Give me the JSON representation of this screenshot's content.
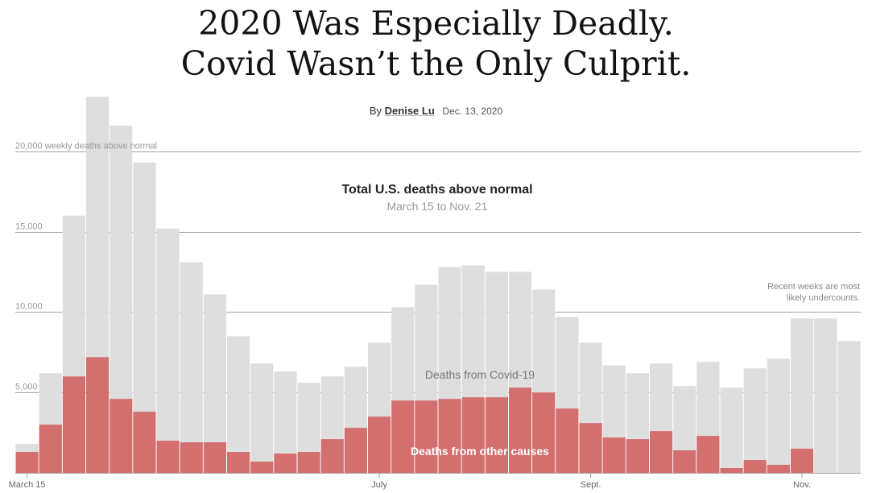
{
  "headline": {
    "line1": "2020 Was Especially Deadly.",
    "line2": "Covid Wasn’t the Only Culprit."
  },
  "byline": {
    "prefix": "By",
    "author": "Denise Lu",
    "date": "Dec. 13, 2020"
  },
  "chart_data": {
    "type": "bar",
    "title": "Total U.S. deaths above normal",
    "subtitle": "March 15 to Nov. 21",
    "xlabel": "",
    "ylabel": "",
    "ylim": [
      0,
      23500
    ],
    "grid": true,
    "y_ticks": [
      {
        "value": 5000,
        "label": "5,000"
      },
      {
        "value": 10000,
        "label": "10,000"
      },
      {
        "value": 15000,
        "label": "15,000"
      },
      {
        "value": 20000,
        "label": "20,000 weekly deaths above normal"
      }
    ],
    "x_ticks": [
      {
        "index": 0,
        "label": "March 15"
      },
      {
        "index": 15,
        "label": "July"
      },
      {
        "index": 24,
        "label": "Sept."
      },
      {
        "index": 33,
        "label": "Nov."
      }
    ],
    "total_values": [
      1800,
      6200,
      16000,
      23400,
      21600,
      19300,
      15200,
      13100,
      11100,
      8500,
      6800,
      6300,
      5600,
      6000,
      6600,
      8100,
      10300,
      11700,
      12800,
      12900,
      12500,
      12500,
      11400,
      9700,
      8100,
      6700,
      6200,
      6800,
      5400,
      6900,
      5300,
      6500,
      7100,
      9600,
      9600,
      8200
    ],
    "series": [
      {
        "name": "Deaths from other causes",
        "values": [
          1300,
          3000,
          6000,
          7200,
          4600,
          3800,
          2000,
          1900,
          1900,
          1300,
          700,
          1200,
          1300,
          2100,
          2800,
          3500,
          4500,
          4500,
          4600,
          4700,
          4700,
          5300,
          5000,
          4000,
          3100,
          2200,
          2100,
          2600,
          1400,
          2300,
          300,
          800,
          500,
          1500,
          0,
          0
        ]
      },
      {
        "name": "Deaths from Covid-19",
        "values": []
      }
    ],
    "annotations": {
      "covid_label": "Deaths from Covid-19",
      "other_label": "Deaths from other causes",
      "note_line1": "Recent weeks are most",
      "note_line2": "likely undercounts."
    },
    "colors": {
      "total": "#dedede",
      "other_causes": "#d46f6f"
    }
  }
}
